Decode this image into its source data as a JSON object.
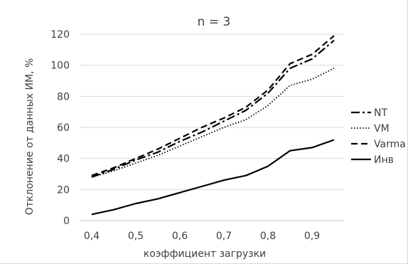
{
  "chart_data": {
    "type": "line",
    "title": "n = 3",
    "xlabel": "коэффициент загрузки",
    "ylabel": "Отклонение от данных ИМ, %",
    "xlim": [
      0.4,
      0.95
    ],
    "ylim": [
      0,
      120
    ],
    "x_ticks": [
      "0,4",
      "0,5",
      "0,6",
      "0,7",
      "0,8",
      "0,9"
    ],
    "y_ticks": [
      "0",
      "20",
      "40",
      "60",
      "80",
      "100",
      "120"
    ],
    "grid": true,
    "legend_position": "right",
    "x": [
      0.4,
      0.45,
      0.5,
      0.55,
      0.6,
      0.65,
      0.7,
      0.75,
      0.8,
      0.85,
      0.9,
      0.95
    ],
    "series": [
      {
        "name": "NT",
        "style": "dash-dot",
        "values": [
          28,
          33,
          39,
          44,
          51,
          57,
          64,
          71,
          82,
          98,
          104,
          116
        ]
      },
      {
        "name": "VM",
        "style": "dotted",
        "values": [
          28,
          32,
          37,
          42,
          48,
          54,
          60,
          65,
          74,
          87,
          91,
          98
        ]
      },
      {
        "name": "Varma",
        "style": "dashed",
        "values": [
          29,
          34,
          40,
          46,
          53,
          60,
          66,
          73,
          84,
          101,
          107,
          119
        ]
      },
      {
        "name": "Инв",
        "style": "solid",
        "values": [
          4,
          7,
          11,
          14,
          18,
          22,
          26,
          29,
          35,
          45,
          47,
          52
        ]
      }
    ]
  }
}
